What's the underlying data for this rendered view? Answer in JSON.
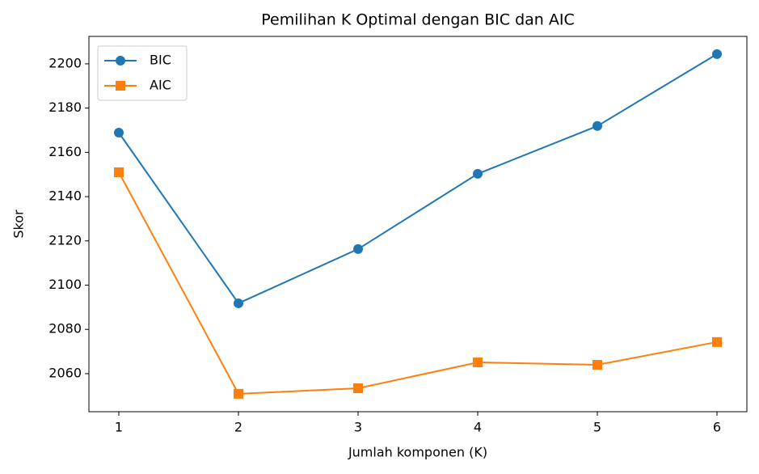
{
  "chart_data": {
    "type": "line",
    "title": "Pemilihan K Optimal dengan BIC dan AIC",
    "x_label": "Jumlah komponen (K)",
    "y_label": "Skor",
    "x": [
      1,
      2,
      3,
      4,
      5,
      6
    ],
    "series": [
      {
        "name": "BIC",
        "color": "#1f77b4",
        "marker": "circle",
        "values": [
          2168.9,
          2091.8,
          2116.3,
          2150.3,
          2171.9,
          2204.4
        ]
      },
      {
        "name": "AIC",
        "color": "#ff7f0e",
        "marker": "square",
        "values": [
          2151.0,
          2050.9,
          2053.4,
          2065.1,
          2064.0,
          2074.3
        ]
      }
    ],
    "xlim": [
      0.75,
      6.25
    ],
    "xticks": [
      1,
      2,
      3,
      4,
      5,
      6
    ],
    "ylim": [
      2042.8,
      2212.4
    ],
    "yticks": [
      2060,
      2080,
      2100,
      2120,
      2140,
      2160,
      2180,
      2200
    ],
    "grid": false,
    "legend": "upper-left"
  }
}
